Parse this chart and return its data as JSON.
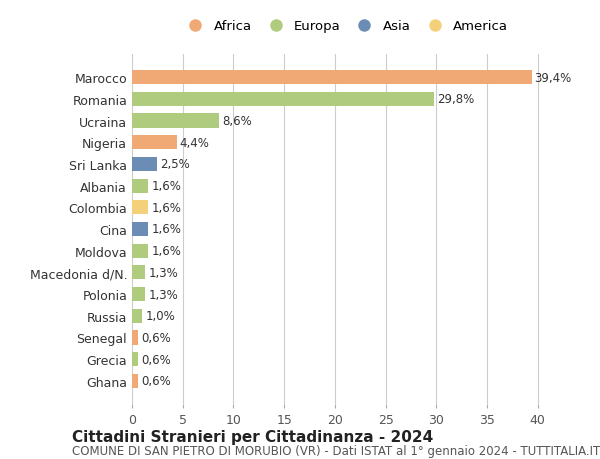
{
  "countries": [
    "Marocco",
    "Romania",
    "Ucraina",
    "Nigeria",
    "Sri Lanka",
    "Albania",
    "Colombia",
    "Cina",
    "Moldova",
    "Macedonia d/N.",
    "Polonia",
    "Russia",
    "Senegal",
    "Grecia",
    "Ghana"
  ],
  "values": [
    39.4,
    29.8,
    8.6,
    4.4,
    2.5,
    1.6,
    1.6,
    1.6,
    1.6,
    1.3,
    1.3,
    1.0,
    0.6,
    0.6,
    0.6
  ],
  "labels": [
    "39,4%",
    "29,8%",
    "8,6%",
    "4,4%",
    "2,5%",
    "1,6%",
    "1,6%",
    "1,6%",
    "1,6%",
    "1,3%",
    "1,3%",
    "1,0%",
    "0,6%",
    "0,6%",
    "0,6%"
  ],
  "colors": [
    "#F0A875",
    "#AECB7E",
    "#AECB7E",
    "#F0A875",
    "#6B8DB5",
    "#AECB7E",
    "#F5D07A",
    "#6B8DB5",
    "#AECB7E",
    "#AECB7E",
    "#AECB7E",
    "#AECB7E",
    "#F0A875",
    "#AECB7E",
    "#F0A875"
  ],
  "continent_labels": [
    "Africa",
    "Europa",
    "Asia",
    "America"
  ],
  "continent_colors": [
    "#F0A875",
    "#AECB7E",
    "#6B8DB5",
    "#F5D07A"
  ],
  "title": "Cittadini Stranieri per Cittadinanza - 2024",
  "subtitle": "COMUNE DI SAN PIETRO DI MORUBIO (VR) - Dati ISTAT al 1° gennaio 2024 - TUTTITALIA.IT",
  "xlim": [
    0,
    42
  ],
  "xticks": [
    0,
    5,
    10,
    15,
    20,
    25,
    30,
    35,
    40
  ],
  "background_color": "#ffffff",
  "grid_color": "#cccccc",
  "bar_height": 0.65,
  "title_fontsize": 11,
  "subtitle_fontsize": 8.5,
  "tick_fontsize": 9,
  "label_fontsize": 8.5,
  "legend_fontsize": 9.5,
  "legend_marker_size": 10
}
